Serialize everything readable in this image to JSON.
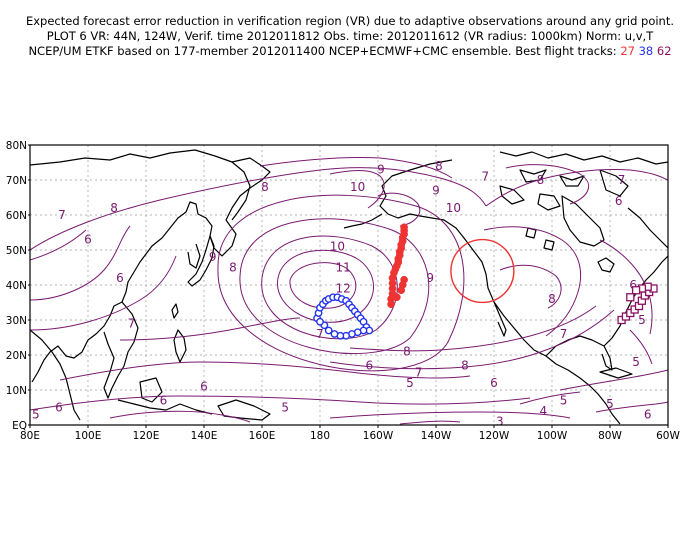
{
  "title": {
    "line1": "Expected forecast error reduction in verification region (VR) due to adaptive observations around any grid point.",
    "line2": "PLOT 6 VR: 44N, 124W, Verif. time 2012011812 Obs. time: 2012011612 (VR radius: 1000km) Norm: u,v,T",
    "line3_prefix": "NCEP/UM ETKF based on 177-member 2012011400 NCEP+ECMWF+CMC ensemble. Best flight tracks:",
    "track_a": "27",
    "track_b": "38",
    "track_c": "62"
  },
  "map": {
    "lat_ticks": [
      "80N",
      "70N",
      "60N",
      "50N",
      "40N",
      "30N",
      "20N",
      "10N",
      "EQ"
    ],
    "lon_ticks": [
      "80E",
      "100E",
      "120E",
      "140E",
      "160E",
      "180",
      "160W",
      "140W",
      "120W",
      "100W",
      "80W",
      "60W"
    ],
    "lon_range_deg_east": [
      80,
      300
    ],
    "lat_range": [
      0,
      80
    ],
    "contour_labels": [
      {
        "text": "9",
        "lon": 201,
        "lat": 73
      },
      {
        "text": "8",
        "lon": 221,
        "lat": 74
      },
      {
        "text": "7",
        "lon": 237,
        "lat": 71
      },
      {
        "text": "7",
        "lon": 284,
        "lat": 70
      },
      {
        "text": "8",
        "lon": 256,
        "lat": 70
      },
      {
        "text": "6",
        "lon": 283,
        "lat": 64
      },
      {
        "text": "10",
        "lon": 193,
        "lat": 68
      },
      {
        "text": "9",
        "lon": 220,
        "lat": 67
      },
      {
        "text": "8",
        "lon": 161,
        "lat": 68
      },
      {
        "text": "8",
        "lon": 109,
        "lat": 62
      },
      {
        "text": "7",
        "lon": 91,
        "lat": 60
      },
      {
        "text": "6",
        "lon": 100,
        "lat": 53
      },
      {
        "text": "10",
        "lon": 226,
        "lat": 62
      },
      {
        "text": "10",
        "lon": 186,
        "lat": 51
      },
      {
        "text": "9",
        "lon": 143,
        "lat": 48
      },
      {
        "text": "8",
        "lon": 150,
        "lat": 45
      },
      {
        "text": "11",
        "lon": 188,
        "lat": 45
      },
      {
        "text": "12",
        "lon": 188,
        "lat": 39
      },
      {
        "text": "9",
        "lon": 218,
        "lat": 42
      },
      {
        "text": "8",
        "lon": 260,
        "lat": 36
      },
      {
        "text": "7",
        "lon": 264,
        "lat": 26
      },
      {
        "text": "6",
        "lon": 111,
        "lat": 42
      },
      {
        "text": "7",
        "lon": 115,
        "lat": 29
      },
      {
        "text": "7",
        "lon": 180,
        "lat": 26
      },
      {
        "text": "8",
        "lon": 210,
        "lat": 21
      },
      {
        "text": "8",
        "lon": 230,
        "lat": 17
      },
      {
        "text": "6",
        "lon": 288,
        "lat": 40
      },
      {
        "text": "5",
        "lon": 291,
        "lat": 30
      },
      {
        "text": "6",
        "lon": 197,
        "lat": 17
      },
      {
        "text": "7",
        "lon": 214,
        "lat": 15
      },
      {
        "text": "6",
        "lon": 240,
        "lat": 12
      },
      {
        "text": "5",
        "lon": 211,
        "lat": 12
      },
      {
        "text": "5",
        "lon": 168,
        "lat": 5
      },
      {
        "text": "4",
        "lon": 257,
        "lat": 4
      },
      {
        "text": "3",
        "lon": 242,
        "lat": 1
      },
      {
        "text": "6",
        "lon": 140,
        "lat": 11
      },
      {
        "text": "6",
        "lon": 126,
        "lat": 7
      },
      {
        "text": "6",
        "lon": 90,
        "lat": 5
      },
      {
        "text": "5",
        "lon": 82,
        "lat": 3
      },
      {
        "text": "5",
        "lon": 264,
        "lat": 7
      },
      {
        "text": "5",
        "lon": 280,
        "lat": 6
      },
      {
        "text": "6",
        "lon": 293,
        "lat": 3
      },
      {
        "text": "5",
        "lon": 289,
        "lat": 18
      }
    ],
    "verification_circle": {
      "lat": 44,
      "lon": 236,
      "radius_km": 1000,
      "color": "#ee3333"
    },
    "tracks": [
      {
        "id": "27",
        "color": "#ee3333",
        "marker": "filled-circle",
        "points": [
          [
            209,
            56.5
          ],
          [
            209,
            55.5
          ],
          [
            209,
            54.5
          ],
          [
            208.5,
            53.5
          ],
          [
            208.5,
            52.5
          ],
          [
            208,
            51.5
          ],
          [
            208,
            50.5
          ],
          [
            207.5,
            49.5
          ],
          [
            207.5,
            48.5
          ],
          [
            207,
            47.5
          ],
          [
            207,
            46.5
          ],
          [
            206.5,
            45.5
          ],
          [
            206,
            44.5
          ],
          [
            205.5,
            43.5
          ],
          [
            205,
            42
          ],
          [
            205,
            40.5
          ],
          [
            205,
            39
          ],
          [
            205,
            37.5
          ],
          [
            204.5,
            36
          ],
          [
            204.5,
            34.5
          ],
          [
            206.5,
            36.5
          ],
          [
            208,
            38.5
          ],
          [
            208.5,
            40
          ],
          [
            209,
            41.5
          ]
        ]
      },
      {
        "id": "38",
        "color": "#2233ee",
        "marker": "open-circle",
        "points": [
          [
            179,
            30.5
          ],
          [
            179.5,
            32
          ],
          [
            180,
            33.5
          ],
          [
            181,
            34.5
          ],
          [
            182,
            35.5
          ],
          [
            183,
            36
          ],
          [
            184.5,
            36.5
          ],
          [
            186,
            36.5
          ],
          [
            187.5,
            36
          ],
          [
            189,
            35.5
          ],
          [
            190,
            34.5
          ],
          [
            191,
            33.5
          ],
          [
            192,
            32.5
          ],
          [
            193,
            31.5
          ],
          [
            194,
            30.5
          ],
          [
            195,
            29.5
          ],
          [
            196,
            28
          ],
          [
            197,
            27
          ],
          [
            195,
            27
          ],
          [
            193,
            26.5
          ],
          [
            191,
            26
          ],
          [
            189,
            25.5
          ],
          [
            187,
            25.5
          ],
          [
            185,
            26
          ],
          [
            183,
            27
          ],
          [
            181.5,
            28.5
          ],
          [
            180,
            29.5
          ]
        ]
      },
      {
        "id": "62",
        "color": "#8a1060",
        "marker": "open-square",
        "points": [
          [
            284,
            30
          ],
          [
            285.5,
            31
          ],
          [
            287,
            32
          ],
          [
            288.5,
            33
          ],
          [
            290,
            34
          ],
          [
            291,
            35.5
          ],
          [
            292,
            37
          ],
          [
            293.5,
            38
          ],
          [
            295,
            39
          ],
          [
            293,
            39.5
          ],
          [
            291,
            39
          ],
          [
            289,
            38.5
          ],
          [
            287,
            36.5
          ]
        ]
      }
    ]
  }
}
